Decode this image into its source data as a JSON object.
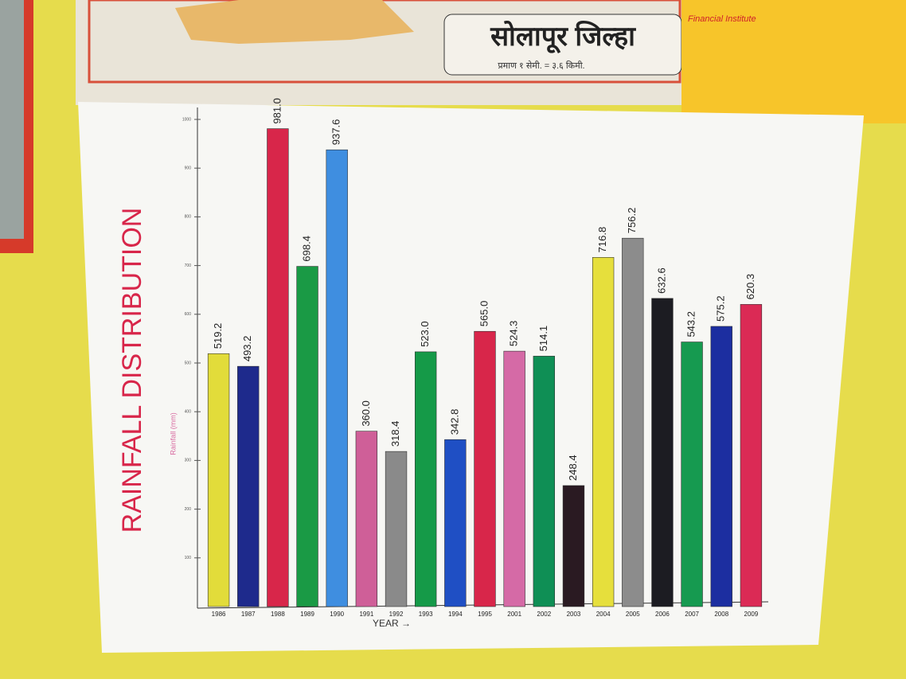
{
  "chart_data": {
    "type": "bar",
    "title": "RAINFALL DISTRIBUTION",
    "x_label": "YEAR →",
    "y_label": "Rainfall (mm)",
    "categories": [
      "1986",
      "1987",
      "1988",
      "1989",
      "1990",
      "1991",
      "1992",
      "1993",
      "1994",
      "1995",
      "2001",
      "2002",
      "2003",
      "2004",
      "2005",
      "2006",
      "2007",
      "2008",
      "2009"
    ],
    "values": [
      519.2,
      493.2,
      981.0,
      698.4,
      937.6,
      360.0,
      318.4,
      523.0,
      342.8,
      565.0,
      524.3,
      514.1,
      248.4,
      716.8,
      756.2,
      632.6,
      543.2,
      575.2,
      620.3
    ],
    "value_labels": [
      "519.2",
      "493.2",
      "981.0",
      "698.4",
      "937.6",
      "360.0",
      "318.4",
      "523.0",
      "342.8",
      "565.0",
      "524.3",
      "514.1",
      "248.4",
      "716.8",
      "756.2",
      "632.6",
      "543.2",
      "575.2",
      "620.3"
    ],
    "colors": [
      "#e2dc3a",
      "#1e2a8c",
      "#d8264a",
      "#1a9a45",
      "#3f8ee0",
      "#cf5f98",
      "#8a8a8a",
      "#159a48",
      "#1f4fc4",
      "#d8264a",
      "#d56aa6",
      "#0f8f55",
      "#2a1a22",
      "#e6df3c",
      "#8c8c8c",
      "#1c1c22",
      "#169a50",
      "#1c2ea0",
      "#db2a55"
    ],
    "ylim": [
      0,
      1000
    ],
    "yticks": [
      100,
      200,
      300,
      400,
      500,
      600,
      700,
      800,
      900,
      1000
    ],
    "grid": false
  },
  "background": {
    "map_title": "सोलापूर जिल्हा",
    "map_scale": "प्रमाण १ सेमी. = ३.६ किमी.",
    "note_title": "Financial Institute"
  }
}
